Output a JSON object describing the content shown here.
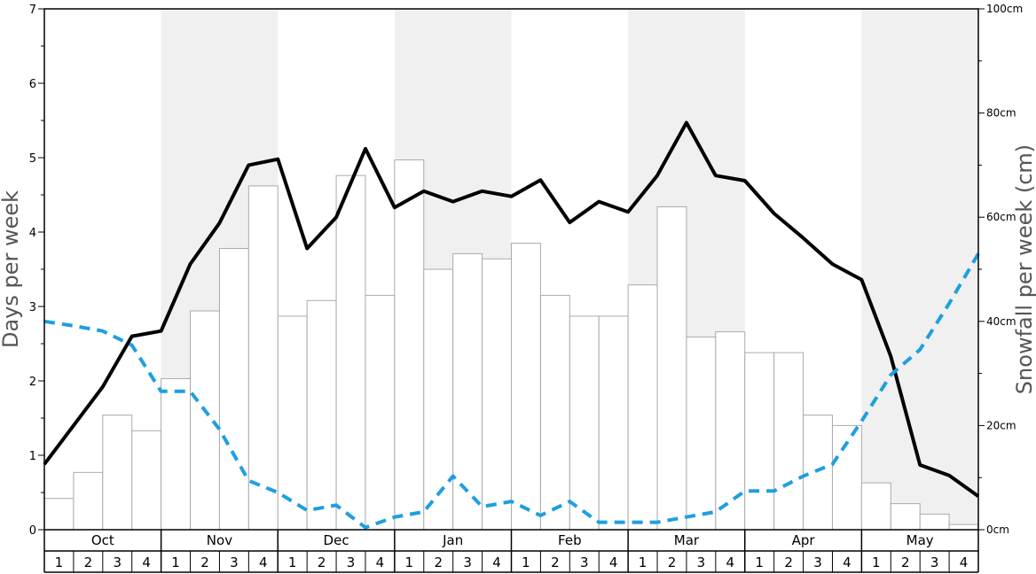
{
  "chart_data": {
    "type": "bar",
    "months": [
      "Oct",
      "Nov",
      "Dec",
      "Jan",
      "Feb",
      "Mar",
      "Apr",
      "May"
    ],
    "weeks": [
      "1",
      "2",
      "3",
      "4"
    ],
    "ylabel_left": "Days per week",
    "ylabel_right": "Snowfall per week (cm)",
    "ylim_left": [
      0,
      7
    ],
    "ylim_right": [
      0,
      100
    ],
    "left_ticks": [
      "0",
      "1",
      "2",
      "3",
      "4",
      "5",
      "6",
      "7"
    ],
    "right_ticks": [
      "0cm",
      "20cm",
      "40cm",
      "60cm",
      "80cm",
      "100cm"
    ],
    "shaded_months": [
      "Nov",
      "Jan",
      "Mar",
      "May"
    ],
    "series": [
      {
        "type": "bar",
        "axis": "right",
        "values": [
          6,
          11,
          22,
          19,
          29,
          42,
          54,
          66,
          41,
          44,
          68,
          45,
          71,
          50,
          53,
          52,
          55,
          45,
          41,
          41,
          47,
          62,
          37,
          38,
          34,
          34,
          22,
          20,
          9,
          5,
          3,
          1
        ]
      },
      {
        "type": "line",
        "axis": "left",
        "style": "solid",
        "color": "#000000",
        "values": [
          0.88,
          1.4,
          1.92,
          2.6,
          2.67,
          3.57,
          4.12,
          4.9,
          4.98,
          3.78,
          4.2,
          5.12,
          4.33,
          4.55,
          4.41,
          4.55,
          4.48,
          4.7,
          4.13,
          4.41,
          4.27,
          4.76,
          5.47,
          4.76,
          4.69,
          4.25,
          3.92,
          3.57,
          3.36,
          2.33,
          0.87,
          0.73,
          0.45
        ]
      },
      {
        "type": "line",
        "axis": "left",
        "style": "dashed",
        "color": "#1E9FE0",
        "values": [
          2.8,
          2.74,
          2.67,
          2.48,
          1.86,
          1.86,
          1.35,
          0.66,
          0.5,
          0.26,
          0.33,
          0.03,
          0.17,
          0.24,
          0.72,
          0.31,
          0.38,
          0.19,
          0.38,
          0.1,
          0.1,
          0.1,
          0.17,
          0.24,
          0.52,
          0.52,
          0.72,
          0.88,
          1.46,
          2.08,
          2.42,
          3.04,
          3.71
        ]
      }
    ]
  }
}
